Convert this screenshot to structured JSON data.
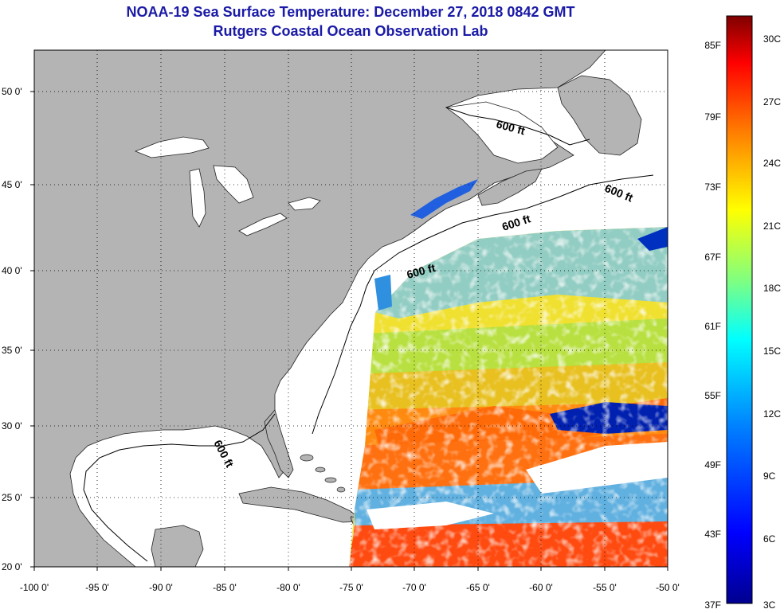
{
  "title": {
    "line1": "NOAA-19 Sea Surface Temperature:  December 27, 2018 0842 GMT",
    "line2": "Rutgers Coastal Ocean Observation Lab",
    "color": "#1a1aa6"
  },
  "map": {
    "land_color": "#b4b4b4",
    "ocean_color": "#ffffff",
    "lon_range": [
      -100,
      -50
    ],
    "lat_range": [
      20,
      52
    ],
    "lon_ticks": [
      "-100 0'",
      "-95 0'",
      "-90 0'",
      "-85 0'",
      "-80 0'",
      "-75 0'",
      "-70 0'",
      "-65 0'",
      "-60 0'",
      "-55 0'",
      "-50 0'"
    ],
    "lat_ticks": [
      "50 0'",
      "45 0'",
      "40 0'",
      "35 0'",
      "30 0'",
      "25 0'",
      "20 0'"
    ],
    "contour_labels": [
      "600 ft",
      "600 ft",
      "600 ft",
      "600 ft",
      "600 ft"
    ]
  },
  "colorbar": {
    "fahrenheit_labels": [
      "85F",
      "79F",
      "73F",
      "67F",
      "61F",
      "55F",
      "49F",
      "43F",
      "37F"
    ],
    "celsius_labels": [
      "30C",
      "27C",
      "24C",
      "21C",
      "18C",
      "15C",
      "12C",
      "9C",
      "6C",
      "3C"
    ],
    "stops": [
      "#7f0000",
      "#ff0000",
      "#ff8000",
      "#ffff00",
      "#80ff80",
      "#00ffff",
      "#0080ff",
      "#0000ff",
      "#00008f"
    ]
  }
}
